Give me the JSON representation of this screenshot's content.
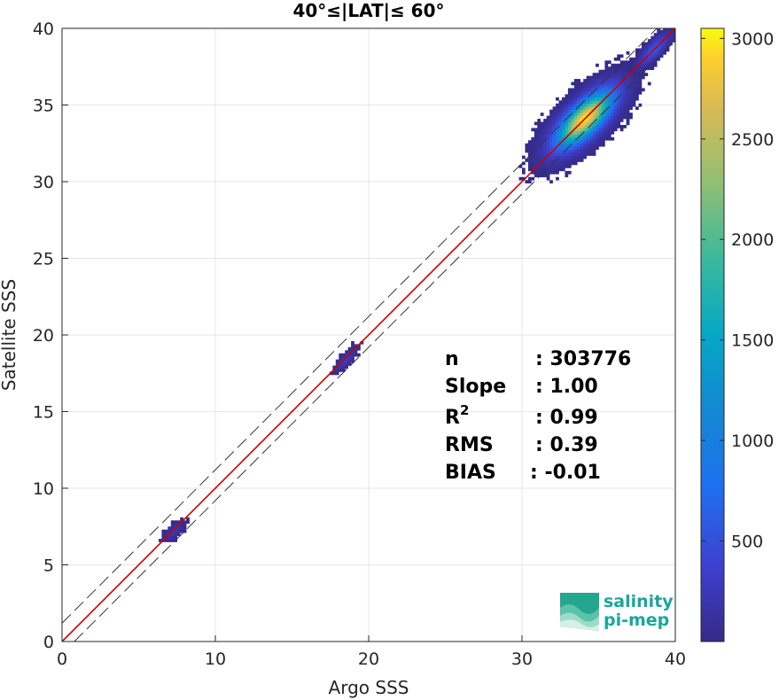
{
  "chart_data": {
    "type": "heatmap",
    "title": "40°≤|LAT|≤ 60°",
    "xlabel": "Argo SSS",
    "ylabel": "Satellite SSS",
    "xlim": [
      0,
      40
    ],
    "ylim": [
      0,
      40
    ],
    "xticks": [
      "0",
      "10",
      "20",
      "30",
      "40"
    ],
    "yticks": [
      "0",
      "5",
      "10",
      "15",
      "20",
      "25",
      "30",
      "35",
      "40"
    ],
    "grid": true,
    "colorbar": {
      "range": [
        0,
        3050
      ],
      "ticks": [
        "500",
        "1000",
        "1500",
        "2000",
        "2500",
        "3000"
      ],
      "colormap": "parula"
    },
    "lines": [
      {
        "kind": "identity",
        "color": "#cc0000",
        "x": [
          0,
          40
        ],
        "y": [
          0,
          40
        ]
      },
      {
        "kind": "upper-bound",
        "style": "dashed",
        "color": "#333333",
        "x": [
          0,
          40
        ],
        "y": [
          1.2,
          41.2
        ]
      },
      {
        "kind": "lower-bound",
        "style": "dashed",
        "color": "#333333",
        "x": [
          0.8,
          40.8
        ],
        "y": [
          0,
          40
        ]
      }
    ],
    "clusters": [
      {
        "x_center": 7.2,
        "y_center": 7.1,
        "x_spread": 0.5,
        "y_spread": 0.4,
        "peak_count": 250
      },
      {
        "x_center": 18.4,
        "y_center": 18.3,
        "x_spread": 0.45,
        "y_spread": 0.7,
        "peak_count": 300
      },
      {
        "x_center": 34.0,
        "y_center": 34.0,
        "x_spread": 1.6,
        "y_spread": 1.5,
        "peak_count": 3000
      },
      {
        "x_center": 38.5,
        "y_center": 38.5,
        "x_spread": 0.7,
        "y_spread": 1.0,
        "peak_count": 600
      }
    ],
    "stats": [
      {
        "label": "n",
        "value": ": 303776"
      },
      {
        "label": "Slope",
        "value": ": 1.00"
      },
      {
        "label": "R",
        "sup": "2",
        "value": ": 0.99"
      },
      {
        "label": "RMS",
        "value": ": 0.39"
      },
      {
        "label": "BIAS",
        "value": ": -0.01"
      }
    ]
  },
  "logo": {
    "line1": "salinity",
    "line2": "pi-mep"
  }
}
